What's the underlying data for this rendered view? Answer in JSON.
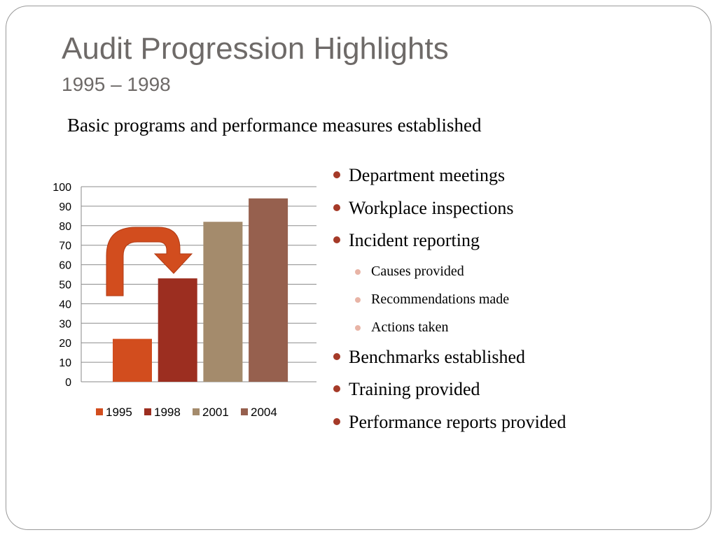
{
  "slide": {
    "title": "Audit Progression Highlights",
    "subtitle": "1995 – 1998",
    "lead": "Basic programs and performance measures established"
  },
  "bullets": [
    {
      "level": 1,
      "text": "Department meetings"
    },
    {
      "level": 1,
      "text": "Workplace inspections"
    },
    {
      "level": 1,
      "text": "Incident reporting"
    },
    {
      "level": 2,
      "text": "Causes provided"
    },
    {
      "level": 2,
      "text": "Recommendations made"
    },
    {
      "level": 2,
      "text": "Actions taken"
    },
    {
      "level": 1,
      "text": "Benchmarks established"
    },
    {
      "level": 1,
      "text": "Training provided"
    },
    {
      "level": 1,
      "text": "Performance reports provided"
    }
  ],
  "colors": {
    "title": "#6e6a68",
    "bullet_primary": "#a53a28",
    "bullet_secondary": "#e8b4a6",
    "arrow": "#d24d1e"
  },
  "chart_data": {
    "type": "bar",
    "categories": [
      "1995",
      "1998",
      "2001",
      "2004"
    ],
    "values": [
      22,
      53,
      82,
      94
    ],
    "colors": [
      "#d24d1e",
      "#9c2e20",
      "#a48b6c",
      "#96604e"
    ],
    "ylim": [
      0,
      100
    ],
    "yticks": [
      0,
      10,
      20,
      30,
      40,
      50,
      60,
      70,
      80,
      90,
      100
    ],
    "grid": true,
    "legend": "bottom",
    "annotation": "curved-arrow-from-1995-to-1998"
  }
}
